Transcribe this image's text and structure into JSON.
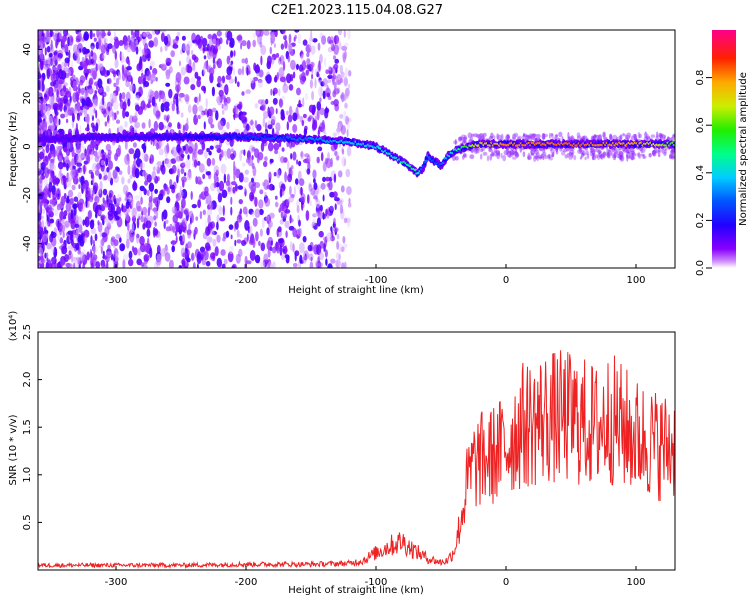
{
  "title": "C2E1.2023.115.04.08.G27",
  "chart_data": [
    {
      "type": "heatmap",
      "xlabel": "Height of straight line (km)",
      "ylabel": "Frequency (Hz)",
      "xlim": [
        -360,
        130
      ],
      "ylim": [
        -50,
        48
      ],
      "xticks": [
        -300,
        -200,
        -100,
        0,
        100
      ],
      "yticks": [
        -40,
        -20,
        0,
        20,
        40
      ],
      "colorbar": {
        "label": "Normalized spectral amplitude",
        "range": [
          0,
          1
        ],
        "ticks": [
          "0.0",
          "0.2",
          "0.4",
          "0.6",
          "0.8"
        ],
        "colormap": "rainbow (purple-blue-cyan-green-yellow-red-magenta)"
      },
      "ridge": {
        "description": "main spectral ridge frequency vs height",
        "x": [
          -360,
          -300,
          -250,
          -200,
          -150,
          -120,
          -100,
          -90,
          -80,
          -72,
          -68,
          -64,
          -60,
          -55,
          -50,
          -45,
          -40,
          -30,
          -20,
          0,
          50,
          100,
          130
        ],
        "y": [
          3,
          4,
          4,
          4,
          3,
          2,
          0,
          -3,
          -6,
          -9,
          -11,
          -9,
          -4,
          -6,
          -8,
          -4,
          -2,
          0,
          1,
          1,
          1,
          1,
          1
        ],
        "amplitude": [
          0.18,
          0.2,
          0.22,
          0.28,
          0.35,
          0.4,
          0.42,
          0.45,
          0.48,
          0.52,
          0.5,
          0.3,
          0.35,
          0.3,
          0.32,
          0.4,
          0.45,
          0.6,
          0.75,
          0.9,
          0.95,
          0.85,
          0.6
        ]
      },
      "grid": false
    },
    {
      "type": "line",
      "xlabel": "Height of straight line (km)",
      "ylabel": "SNR (10 * v/v)",
      "yscale_label": "(x10⁴)",
      "scale_exponent": 4,
      "xlim": [
        -360,
        130
      ],
      "ylim": [
        0,
        2.5
      ],
      "xticks": [
        -300,
        -200,
        -100,
        0,
        100
      ],
      "yticks": [
        "0.5",
        "1.0",
        "1.5",
        "2.0",
        "2.5"
      ],
      "series": [
        {
          "color": "#ee2222",
          "x": [
            -360,
            -300,
            -250,
            -200,
            -150,
            -120,
            -110,
            -100,
            -90,
            -80,
            -70,
            -60,
            -50,
            -45,
            -40,
            -35,
            -30,
            -25,
            -20,
            -10,
            0,
            10,
            20,
            30,
            40,
            50,
            60,
            70,
            80,
            90,
            100,
            110,
            120,
            130
          ],
          "y": [
            0.05,
            0.05,
            0.05,
            0.06,
            0.06,
            0.07,
            0.1,
            0.18,
            0.25,
            0.3,
            0.2,
            0.12,
            0.08,
            0.1,
            0.2,
            0.5,
            0.9,
            1.1,
            1.15,
            1.2,
            1.3,
            1.5,
            1.55,
            1.6,
            1.6,
            1.6,
            1.55,
            1.5,
            1.6,
            1.5,
            1.4,
            1.35,
            1.3,
            1.3
          ]
        }
      ],
      "grid": false
    }
  ]
}
